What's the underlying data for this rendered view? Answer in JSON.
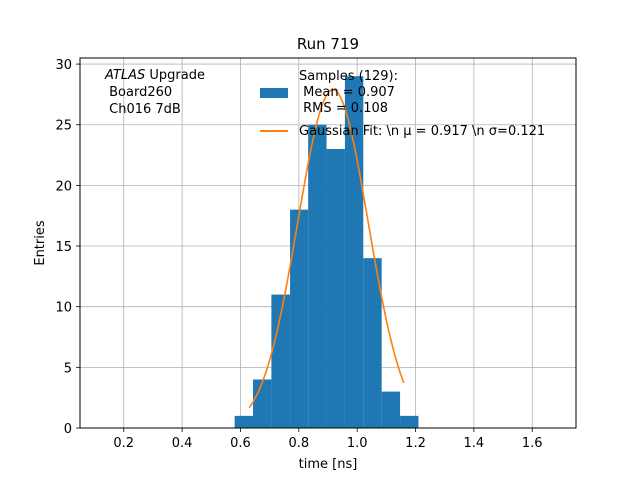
{
  "chart_data": {
    "type": "bar",
    "title": "Run 719",
    "xlabel": "time [ns]",
    "ylabel": "Entries",
    "xlim": [
      0.05,
      1.75
    ],
    "ylim": [
      0,
      30.5
    ],
    "xticks": [
      0.2,
      0.4,
      0.6,
      0.8,
      1.0,
      1.2,
      1.4,
      1.6
    ],
    "xtick_labels": [
      "0.2",
      "0.4",
      "0.6",
      "0.8",
      "1.0",
      "1.2",
      "1.4",
      "1.6"
    ],
    "yticks": [
      0,
      5,
      10,
      15,
      20,
      25,
      30
    ],
    "ytick_labels": [
      "0",
      "5",
      "10",
      "15",
      "20",
      "25",
      "30"
    ],
    "grid": true,
    "histogram": {
      "color": "#1f77b4",
      "bins": [
        {
          "x0": 0.58,
          "x1": 0.643,
          "count": 1
        },
        {
          "x0": 0.643,
          "x1": 0.706,
          "count": 4
        },
        {
          "x0": 0.706,
          "x1": 0.77,
          "count": 11
        },
        {
          "x0": 0.77,
          "x1": 0.832,
          "count": 18
        },
        {
          "x0": 0.832,
          "x1": 0.895,
          "count": 25
        },
        {
          "x0": 0.895,
          "x1": 0.958,
          "count": 23
        },
        {
          "x0": 0.958,
          "x1": 1.021,
          "count": 29
        },
        {
          "x0": 1.021,
          "x1": 1.084,
          "count": 14
        },
        {
          "x0": 1.084,
          "x1": 1.147,
          "count": 3
        },
        {
          "x0": 1.147,
          "x1": 1.21,
          "count": 1
        }
      ]
    },
    "fit": {
      "color": "#ff7f0e",
      "mu": 0.917,
      "sigma": 0.121,
      "amplitude": 27.9,
      "x_range": [
        0.63,
        1.16
      ]
    },
    "legend": {
      "placement": "top-right",
      "entries": [
        {
          "name": "Samples (129):\n Mean = 0.907\n RMS = 0.108",
          "color": "#1f77b4",
          "kind": "patch"
        },
        {
          "name": "Gaussian Fit: \\n μ = 0.917 \\n σ=0.121",
          "color": "#ff7f0e",
          "kind": "line"
        }
      ]
    },
    "annotation": {
      "italic": "ATLAS",
      "rest": " Upgrade",
      "line2": " Board260",
      "line3": " Ch016 7dB"
    }
  }
}
